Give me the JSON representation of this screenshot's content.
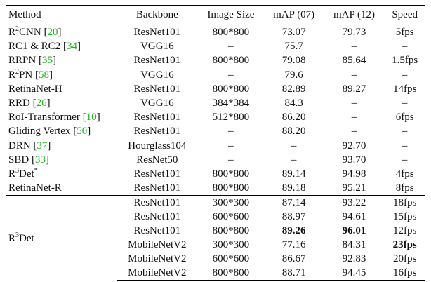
{
  "headers": [
    "Method",
    "Backbone",
    "Image Size",
    "mAP (07)",
    "mAP (12)",
    "Speed"
  ],
  "rows": [
    {
      "m_pre": "R",
      "m_sup": "2",
      "m_post": "CNN",
      "cite": "20",
      "backbone": "ResNet101",
      "size": "800*800",
      "map07": "73.07",
      "map12": "79.73",
      "speed": "5fps"
    },
    {
      "m_pre": "RC1 & RC2",
      "m_sup": "",
      "m_post": "",
      "cite": "34",
      "backbone": "VGG16",
      "size": "–",
      "map07": "75.7",
      "map12": "–",
      "speed": "–"
    },
    {
      "m_pre": "RRPN",
      "m_sup": "",
      "m_post": "",
      "cite": "35",
      "backbone": "ResNet101",
      "size": "800*800",
      "map07": "79.08",
      "map12": "85.64",
      "speed": "1.5fps"
    },
    {
      "m_pre": "R",
      "m_sup": "2",
      "m_post": "PN",
      "cite": "58",
      "backbone": "VGG16",
      "size": "–",
      "map07": "79.6",
      "map12": "–",
      "speed": "–"
    },
    {
      "m_pre": "RetinaNet-H",
      "m_sup": "",
      "m_post": "",
      "cite": "",
      "backbone": "ResNet101",
      "size": "800*800",
      "map07": "82.89",
      "map12": "89.27",
      "speed": "14fps"
    },
    {
      "m_pre": "RRD",
      "m_sup": "",
      "m_post": "",
      "cite": "26",
      "backbone": "VGG16",
      "size": "384*384",
      "map07": "84.3",
      "map12": "–",
      "speed": "–"
    },
    {
      "m_pre": "RoI-Transformer",
      "m_sup": "",
      "m_post": "",
      "cite": "10",
      "backbone": "ResNet101",
      "size": "512*800",
      "map07": "86.20",
      "map12": "–",
      "speed": "6fps"
    },
    {
      "m_pre": "Gliding Vertex",
      "m_sup": "",
      "m_post": "",
      "cite": "50",
      "backbone": "ResNet101",
      "size": "–",
      "map07": "88.20",
      "map12": "–",
      "speed": "–"
    },
    {
      "m_pre": "DRN",
      "m_sup": "",
      "m_post": "",
      "cite": "37",
      "backbone": "Hourglass104",
      "size": "–",
      "map07": "–",
      "map12": "92.70",
      "speed": "–"
    },
    {
      "m_pre": "SBD",
      "m_sup": "",
      "m_post": "",
      "cite": "33",
      "backbone": "ResNet50",
      "size": "–",
      "map07": "–",
      "map12": "93.70",
      "speed": "–"
    },
    {
      "m_pre": "R",
      "m_sup": "3",
      "m_post": "Det",
      "m_sup2": "*",
      "cite": "",
      "backbone": "ResNet101",
      "size": "800*800",
      "map07": "89.14",
      "map12": "94.98",
      "speed": "4fps"
    },
    {
      "m_pre": "RetinaNet-R",
      "m_sup": "",
      "m_post": "",
      "cite": "",
      "backbone": "ResNet101",
      "size": "800*800",
      "map07": "89.18",
      "map12": "95.21",
      "speed": "8fps"
    }
  ],
  "r3det": {
    "m_pre": "R",
    "m_sup": "3",
    "m_post": "Det",
    "rows": [
      {
        "backbone": "ResNet101",
        "size": "300*300",
        "map07": "87.14",
        "map12": "93.22",
        "speed": "18fps"
      },
      {
        "backbone": "ResNet101",
        "size": "600*600",
        "map07": "88.97",
        "map12": "94.61",
        "speed": "15fps"
      },
      {
        "backbone": "ResNet101",
        "size": "800*800",
        "map07": "89.26",
        "map12": "96.01",
        "speed": "12fps"
      },
      {
        "backbone": "MobileNetV2",
        "size": "300*300",
        "map07": "77.16",
        "map12": "84.31",
        "speed": "23fps"
      },
      {
        "backbone": "MobileNetV2",
        "size": "600*600",
        "map07": "86.67",
        "map12": "92.83",
        "speed": "20fps"
      },
      {
        "backbone": "MobileNetV2",
        "size": "800*800",
        "map07": "88.71",
        "map12": "94.45",
        "speed": "16fps"
      }
    ]
  }
}
